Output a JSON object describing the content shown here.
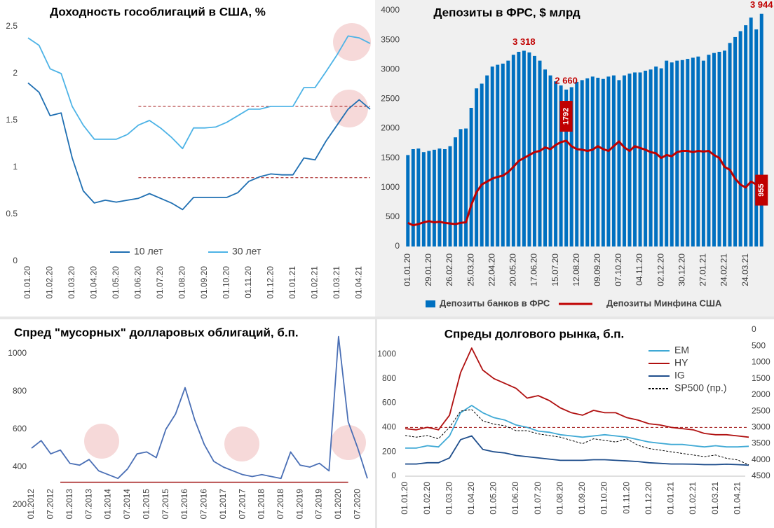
{
  "chart_data": [
    {
      "type": "line",
      "title": "Доходность гособлигаций в США, %",
      "categories": [
        "01.01.20",
        null,
        "01.02.20",
        null,
        "01.03.20",
        null,
        "01.04.20",
        null,
        "01.05.20",
        null,
        "01.06.20",
        null,
        "01.07.20",
        null,
        "01.08.20",
        null,
        "01.09.20",
        null,
        "01.10.20",
        null,
        "01.11.20",
        null,
        "01.12.20",
        null,
        "01.01.21",
        null,
        "01.02.21",
        null,
        "01.03.21",
        null,
        "01.04.21",
        null
      ],
      "series": [
        {
          "name": "10 лет",
          "color": "#1f6fb2",
          "values": [
            1.9,
            1.8,
            1.55,
            1.58,
            1.1,
            0.75,
            0.62,
            0.65,
            0.63,
            0.65,
            0.67,
            0.72,
            0.67,
            0.62,
            0.55,
            0.68,
            0.68,
            0.68,
            0.68,
            0.73,
            0.85,
            0.9,
            0.93,
            0.92,
            0.92,
            1.1,
            1.08,
            1.28,
            1.45,
            1.62,
            1.72,
            1.62
          ]
        },
        {
          "name": "30 лет",
          "color": "#4db3e6",
          "values": [
            2.38,
            2.3,
            2.05,
            2.0,
            1.65,
            1.45,
            1.3,
            1.3,
            1.3,
            1.35,
            1.45,
            1.5,
            1.42,
            1.32,
            1.2,
            1.42,
            1.42,
            1.43,
            1.48,
            1.55,
            1.62,
            1.62,
            1.65,
            1.65,
            1.65,
            1.85,
            1.85,
            2.02,
            2.2,
            2.4,
            2.38,
            2.32
          ]
        }
      ],
      "reference_lines": [
        1.65,
        0.89
      ],
      "reference_color": "#a01010",
      "ylim": [
        0,
        2.5
      ],
      "yticks": [
        0,
        0.5,
        1,
        1.5,
        2,
        2.5
      ],
      "legend": "bottom"
    },
    {
      "type": "combo",
      "title": "Депозиты в ФРС, $ млрд",
      "categories": [
        "01.01.20",
        null,
        null,
        null,
        "29.01.20",
        null,
        null,
        null,
        "26.02.20",
        null,
        null,
        null,
        "25.03.20",
        null,
        null,
        null,
        "22.04.20",
        null,
        null,
        null,
        "20.05.20",
        null,
        null,
        null,
        "17.06.20",
        null,
        null,
        null,
        "15.07.20",
        null,
        null,
        null,
        "12.08.20",
        null,
        null,
        null,
        "09.09.20",
        null,
        null,
        null,
        "07.10.20",
        null,
        null,
        null,
        "04.11.20",
        null,
        null,
        null,
        "02.12.20",
        null,
        null,
        null,
        "30.12.20",
        null,
        null,
        null,
        "27.01.21",
        null,
        null,
        null,
        "24.02.21",
        null,
        null,
        null,
        "24.03.21",
        null,
        null,
        null
      ],
      "series": [
        {
          "name": "Депозиты банков в ФРС",
          "type": "bar",
          "color": "#0070c0",
          "label_color": "#c00000",
          "values": [
            1550,
            1650,
            1660,
            1600,
            1620,
            1640,
            1660,
            1650,
            1700,
            1850,
            1990,
            2000,
            2350,
            2680,
            2760,
            2900,
            3050,
            3080,
            3100,
            3150,
            3250,
            3300,
            3318,
            3290,
            3230,
            3150,
            3000,
            2900,
            2800,
            2730,
            2660,
            2700,
            2790,
            2820,
            2850,
            2880,
            2860,
            2840,
            2880,
            2900,
            2820,
            2900,
            2930,
            2950,
            2950,
            2980,
            3000,
            3050,
            3020,
            3150,
            3120,
            3150,
            3160,
            3180,
            3200,
            3220,
            3150,
            3250,
            3280,
            3300,
            3320,
            3450,
            3550,
            3650,
            3750,
            3880,
            3680,
            3944
          ],
          "value_labels": [
            null,
            null,
            null,
            null,
            null,
            null,
            null,
            null,
            null,
            null,
            null,
            null,
            null,
            null,
            null,
            null,
            null,
            null,
            null,
            null,
            null,
            null,
            "3 318",
            null,
            null,
            null,
            null,
            null,
            null,
            null,
            "2 660",
            null,
            null,
            null,
            null,
            null,
            null,
            null,
            null,
            null,
            null,
            null,
            null,
            null,
            null,
            null,
            null,
            null,
            null,
            null,
            null,
            null,
            null,
            null,
            null,
            null,
            null,
            null,
            null,
            null,
            null,
            null,
            null,
            null,
            null,
            null,
            null,
            "3 944"
          ]
        },
        {
          "name": "Депозиты Минфина США",
          "type": "line",
          "color": "#c00000",
          "values": [
            400,
            360,
            380,
            410,
            430,
            410,
            420,
            400,
            390,
            380,
            400,
            410,
            700,
            920,
            1050,
            1100,
            1150,
            1180,
            1200,
            1260,
            1350,
            1450,
            1500,
            1550,
            1600,
            1620,
            1680,
            1650,
            1720,
            1770,
            1792,
            1700,
            1650,
            1640,
            1620,
            1640,
            1700,
            1650,
            1620,
            1700,
            1780,
            1680,
            1620,
            1700,
            1670,
            1640,
            1600,
            1580,
            1500,
            1550,
            1530,
            1600,
            1620,
            1620,
            1600,
            1620,
            1610,
            1620,
            1550,
            1500,
            1350,
            1300,
            1150,
            1050,
            1000,
            1100,
            1050,
            955
          ],
          "value_labels": [
            null,
            null,
            null,
            null,
            null,
            null,
            null,
            null,
            null,
            null,
            null,
            null,
            null,
            null,
            null,
            null,
            null,
            null,
            null,
            null,
            null,
            null,
            null,
            null,
            null,
            null,
            null,
            null,
            null,
            null,
            "1792",
            null,
            null,
            null,
            null,
            null,
            null,
            null,
            null,
            null,
            null,
            null,
            null,
            null,
            null,
            null,
            null,
            null,
            null,
            null,
            null,
            null,
            null,
            null,
            null,
            null,
            null,
            null,
            null,
            null,
            null,
            null,
            null,
            null,
            null,
            null,
            null,
            "955"
          ]
        }
      ],
      "ylim": [
        0,
        4000
      ],
      "yticks": [
        0,
        500,
        1000,
        1500,
        2000,
        2500,
        3000,
        3500,
        4000
      ],
      "legend": "bottom"
    },
    {
      "type": "line",
      "title": "Спред \"мусорных\" долларовых облигаций, б.п.",
      "categories": [
        "01.2012",
        null,
        "07.2012",
        null,
        "01.2013",
        null,
        "07.2013",
        null,
        "01.2014",
        null,
        "07.2014",
        null,
        "01.2015",
        null,
        "07.2015",
        null,
        "01.2016",
        null,
        "07.2016",
        null,
        "01.2017",
        null,
        "07.2017",
        null,
        "01.2018",
        null,
        "07.2018",
        null,
        "01.2019",
        null,
        "07.2019",
        null,
        "01.2020",
        null,
        "07.2020",
        null
      ],
      "values": [
        500,
        540,
        470,
        490,
        420,
        410,
        440,
        380,
        360,
        340,
        390,
        470,
        480,
        450,
        600,
        680,
        820,
        650,
        520,
        430,
        400,
        380,
        360,
        350,
        360,
        350,
        340,
        480,
        410,
        400,
        420,
        380,
        1090,
        640,
        500,
        340
      ],
      "color": "#4a6fb5",
      "reference_lines": [
        320
      ],
      "reference_color": "#a01010",
      "ylim": [
        200,
        1100
      ],
      "yticks": [
        200,
        400,
        600,
        800,
        1000
      ]
    },
    {
      "type": "line",
      "title": "Спреды долгового рынка, б.п.",
      "categories": [
        "01.01.20",
        null,
        "01.02.20",
        null,
        "01.03.20",
        null,
        "01.04.20",
        null,
        "01.05.20",
        null,
        "01.06.20",
        null,
        "01.07.20",
        null,
        "01.08.20",
        null,
        "01.09.20",
        null,
        "01.10.20",
        null,
        "01.11.20",
        null,
        "01.12.20",
        null,
        "01.01.21",
        null,
        "01.02.21",
        null,
        "01.03.21",
        null,
        "01.04.21",
        null
      ],
      "series": [
        {
          "name": "EM",
          "color": "#3fa9d5",
          "values": [
            230,
            230,
            250,
            240,
            330,
            520,
            580,
            520,
            480,
            460,
            420,
            400,
            370,
            360,
            340,
            330,
            320,
            330,
            340,
            330,
            320,
            300,
            280,
            270,
            260,
            260,
            250,
            240,
            250,
            240,
            240,
            245
          ]
        },
        {
          "name": "HY",
          "color": "#b01010",
          "values": [
            390,
            380,
            400,
            380,
            500,
            850,
            1050,
            870,
            800,
            760,
            720,
            640,
            660,
            620,
            560,
            520,
            500,
            540,
            520,
            520,
            480,
            460,
            430,
            420,
            400,
            390,
            380,
            350,
            340,
            340,
            330,
            320
          ]
        },
        {
          "name": "IG",
          "color": "#1f4e8c",
          "values": [
            100,
            100,
            110,
            110,
            150,
            300,
            330,
            220,
            200,
            190,
            170,
            160,
            150,
            140,
            130,
            130,
            130,
            135,
            135,
            130,
            125,
            120,
            110,
            105,
            100,
            100,
            98,
            95,
            95,
            98,
            95,
            90
          ]
        },
        {
          "name": "SP500 (пр.)",
          "color": "#000000",
          "dash": true,
          "axis": "y2",
          "values": [
            3250,
            3300,
            3250,
            3350,
            3000,
            2500,
            2450,
            2800,
            2900,
            2950,
            3100,
            3100,
            3200,
            3250,
            3300,
            3400,
            3500,
            3350,
            3400,
            3450,
            3350,
            3550,
            3650,
            3700,
            3750,
            3800,
            3850,
            3900,
            3850,
            3950,
            4000,
            4150
          ]
        }
      ],
      "reference_lines": [
        400
      ],
      "reference_color": "#a01010",
      "ylim": [
        0,
        1200
      ],
      "yticks": [
        0,
        200,
        400,
        600,
        800,
        1000
      ],
      "y2lim": [
        4500,
        0
      ],
      "y2ticks": [
        0,
        500,
        1000,
        1500,
        2000,
        2500,
        3000,
        3500,
        4000,
        4500
      ],
      "legend": "upper right"
    }
  ]
}
